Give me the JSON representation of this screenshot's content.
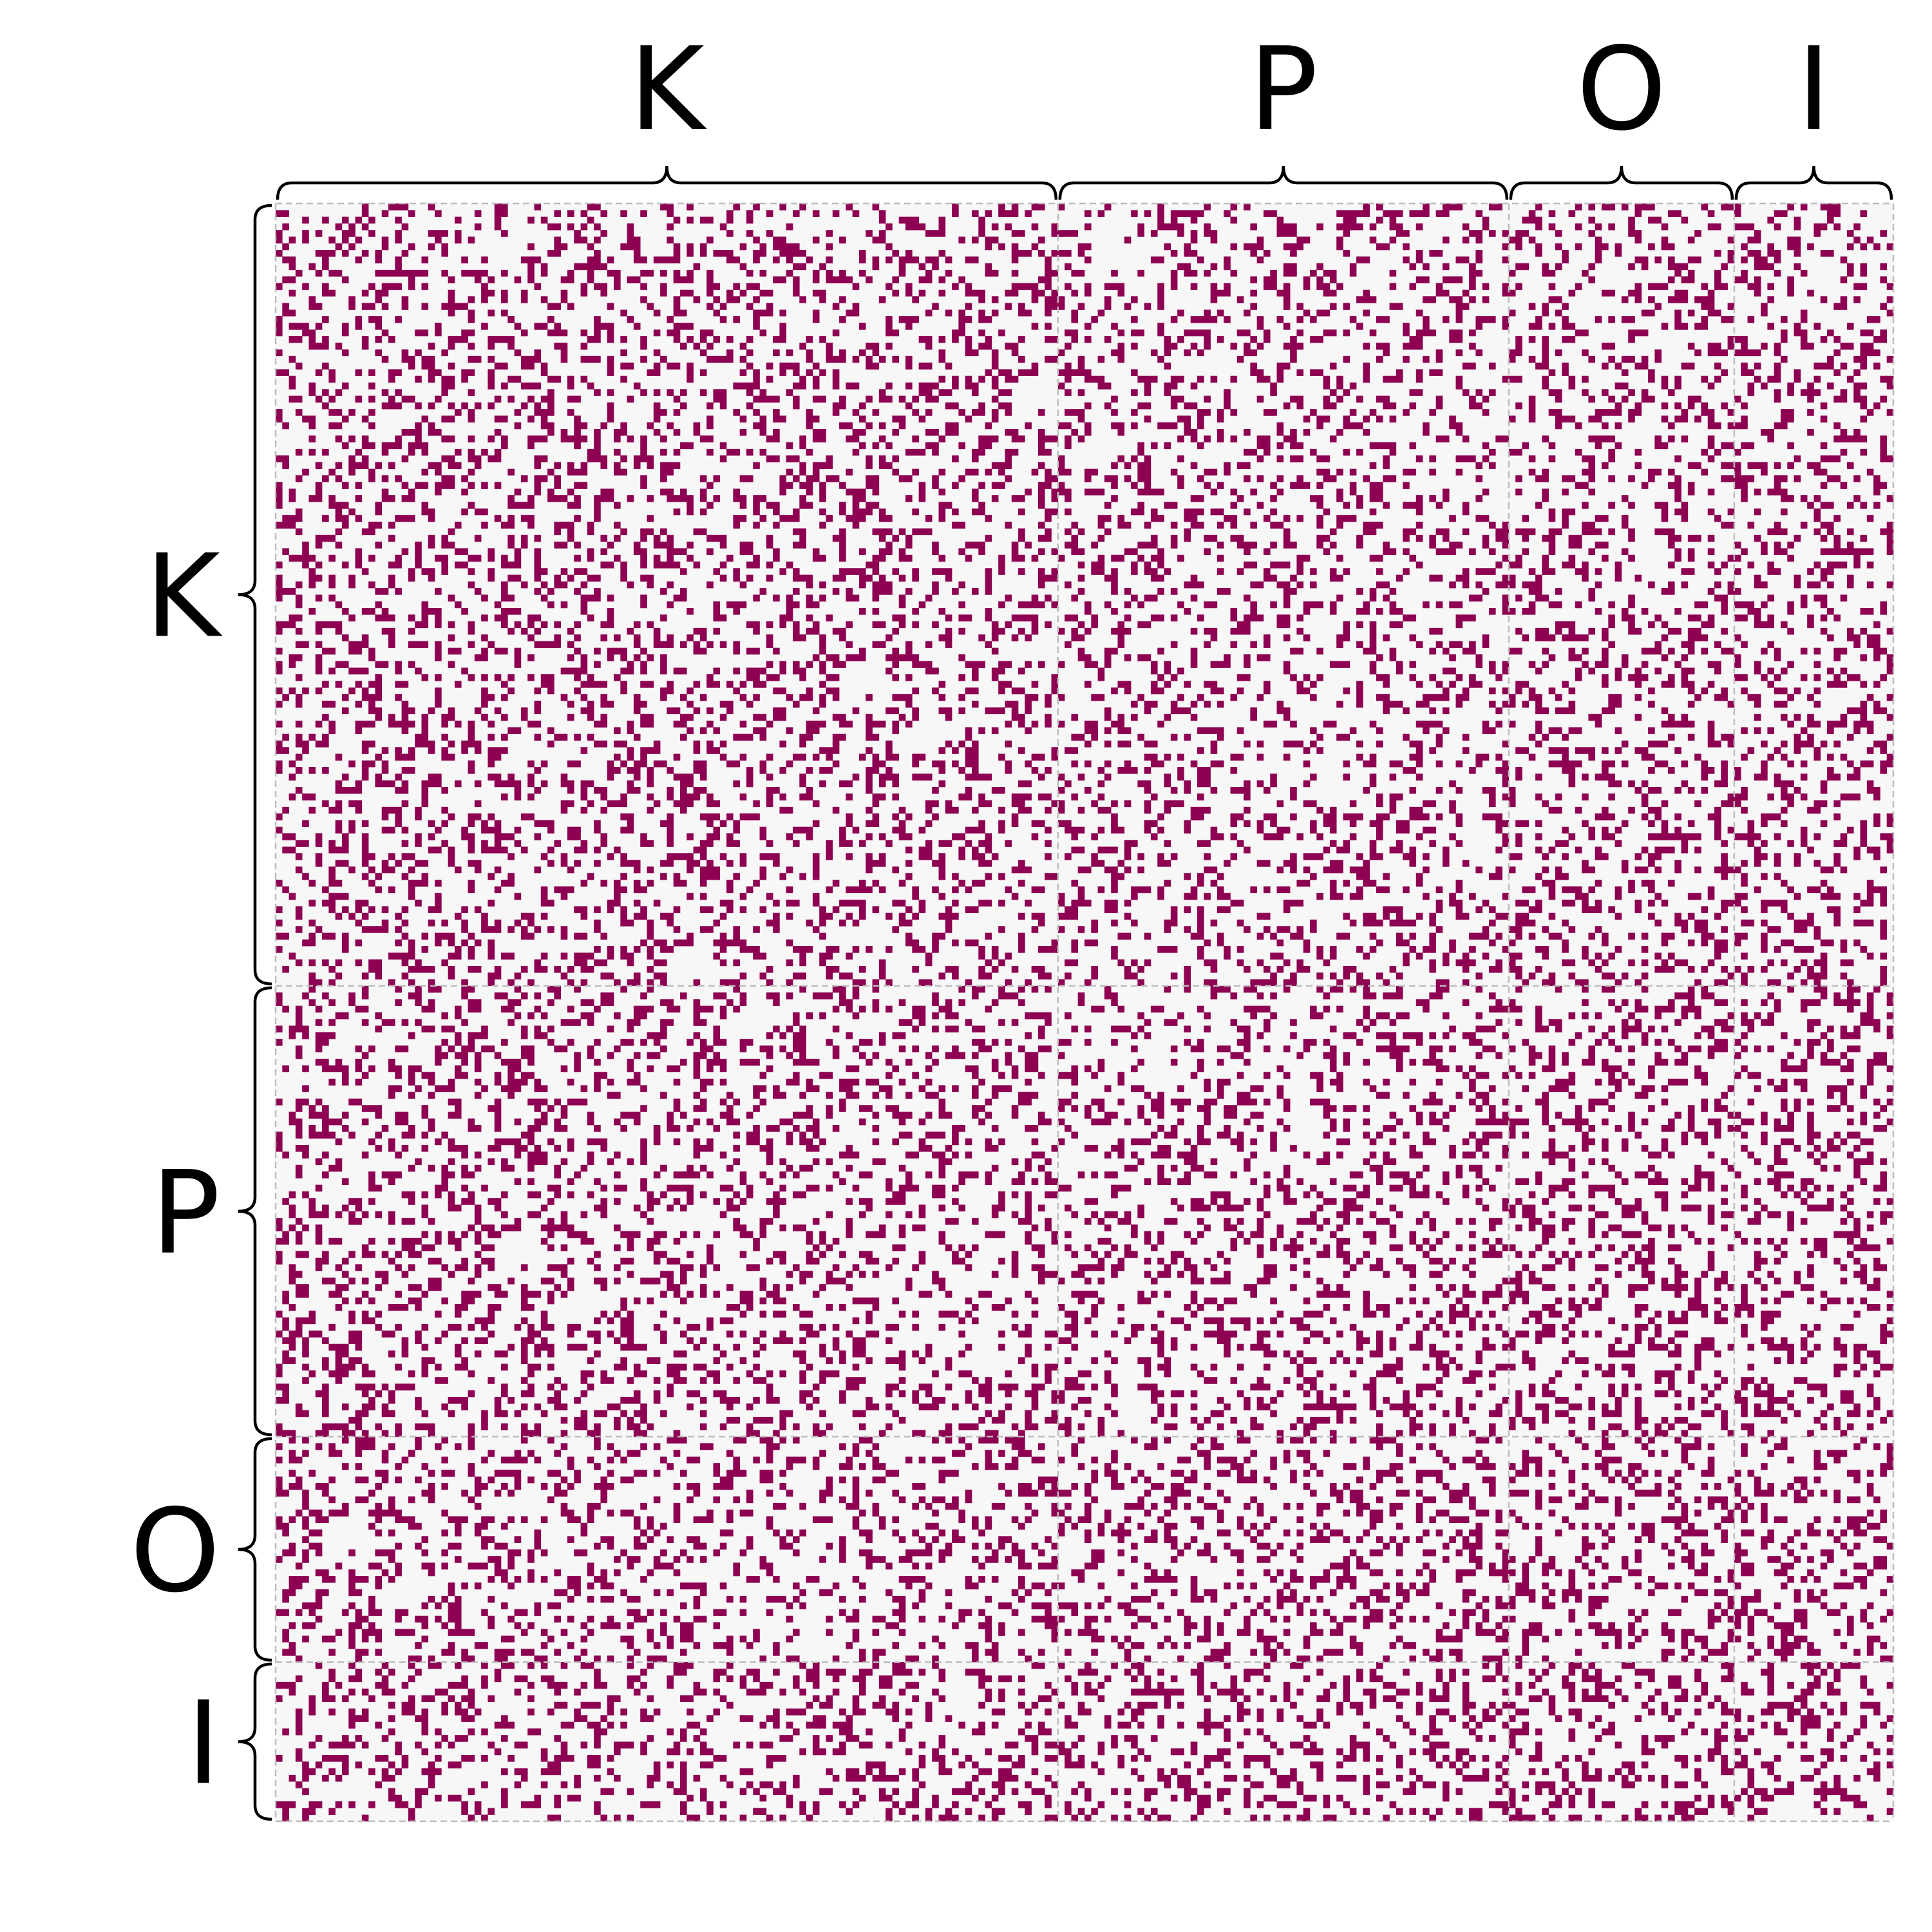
{
  "chart_data": {
    "type": "heatmap",
    "title": "",
    "xlabel": "",
    "ylabel": "",
    "value_kind": "binary adjacency (1 = filled cell, 0 = empty)",
    "grid_size": 244,
    "fill_density_estimate": 0.25,
    "blocks": [
      {
        "label": "K",
        "count": 118
      },
      {
        "label": "P",
        "count": 68
      },
      {
        "label": "O",
        "count": 34
      },
      {
        "label": "I",
        "count": 24
      }
    ],
    "column_group_labels": [
      "K",
      "P",
      "O",
      "I"
    ],
    "row_group_labels": [
      "K",
      "P",
      "O",
      "I"
    ],
    "block_separators": "dashed",
    "colors": {
      "filled": "#8e0152",
      "empty": "#f7f7f7",
      "separator": "#bdbdbd",
      "brace": "#000000"
    }
  }
}
